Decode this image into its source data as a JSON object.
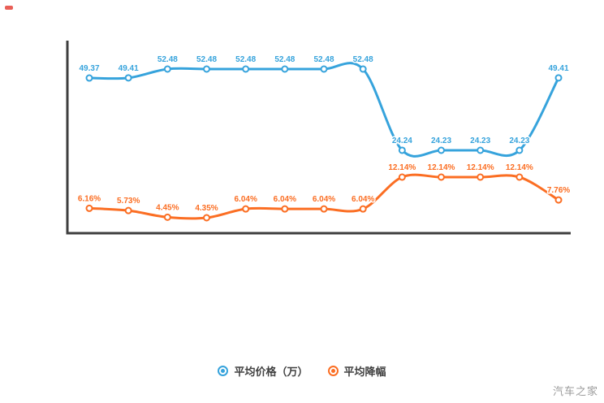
{
  "watermark": "汽车之家",
  "legend": {
    "items": [
      {
        "label": "平均价格（万）",
        "color": "#36a3dc"
      },
      {
        "label": "平均降幅",
        "color": "#fb6e23"
      }
    ]
  },
  "chart_data": {
    "type": "line",
    "x": [
      1,
      2,
      3,
      4,
      5,
      6,
      7,
      8,
      9,
      10,
      11,
      12,
      13
    ],
    "x_tick_labels_visible": false,
    "y_tick_labels_visible": false,
    "grid": false,
    "title": "",
    "xlabel": "",
    "ylabel": "",
    "legend_position": "bottom",
    "series": [
      {
        "name": "平均价格（万）",
        "color": "#36a3dc",
        "unit": "",
        "values": [
          49.37,
          49.41,
          52.48,
          52.48,
          52.48,
          52.48,
          52.48,
          52.48,
          24.24,
          24.23,
          24.23,
          24.23,
          49.41
        ]
      },
      {
        "name": "平均降幅",
        "color": "#fb6e23",
        "unit": "%",
        "values": [
          6.16,
          5.73,
          4.45,
          4.35,
          6.04,
          6.04,
          6.04,
          6.04,
          12.14,
          12.14,
          12.14,
          12.14,
          7.76
        ]
      }
    ]
  }
}
